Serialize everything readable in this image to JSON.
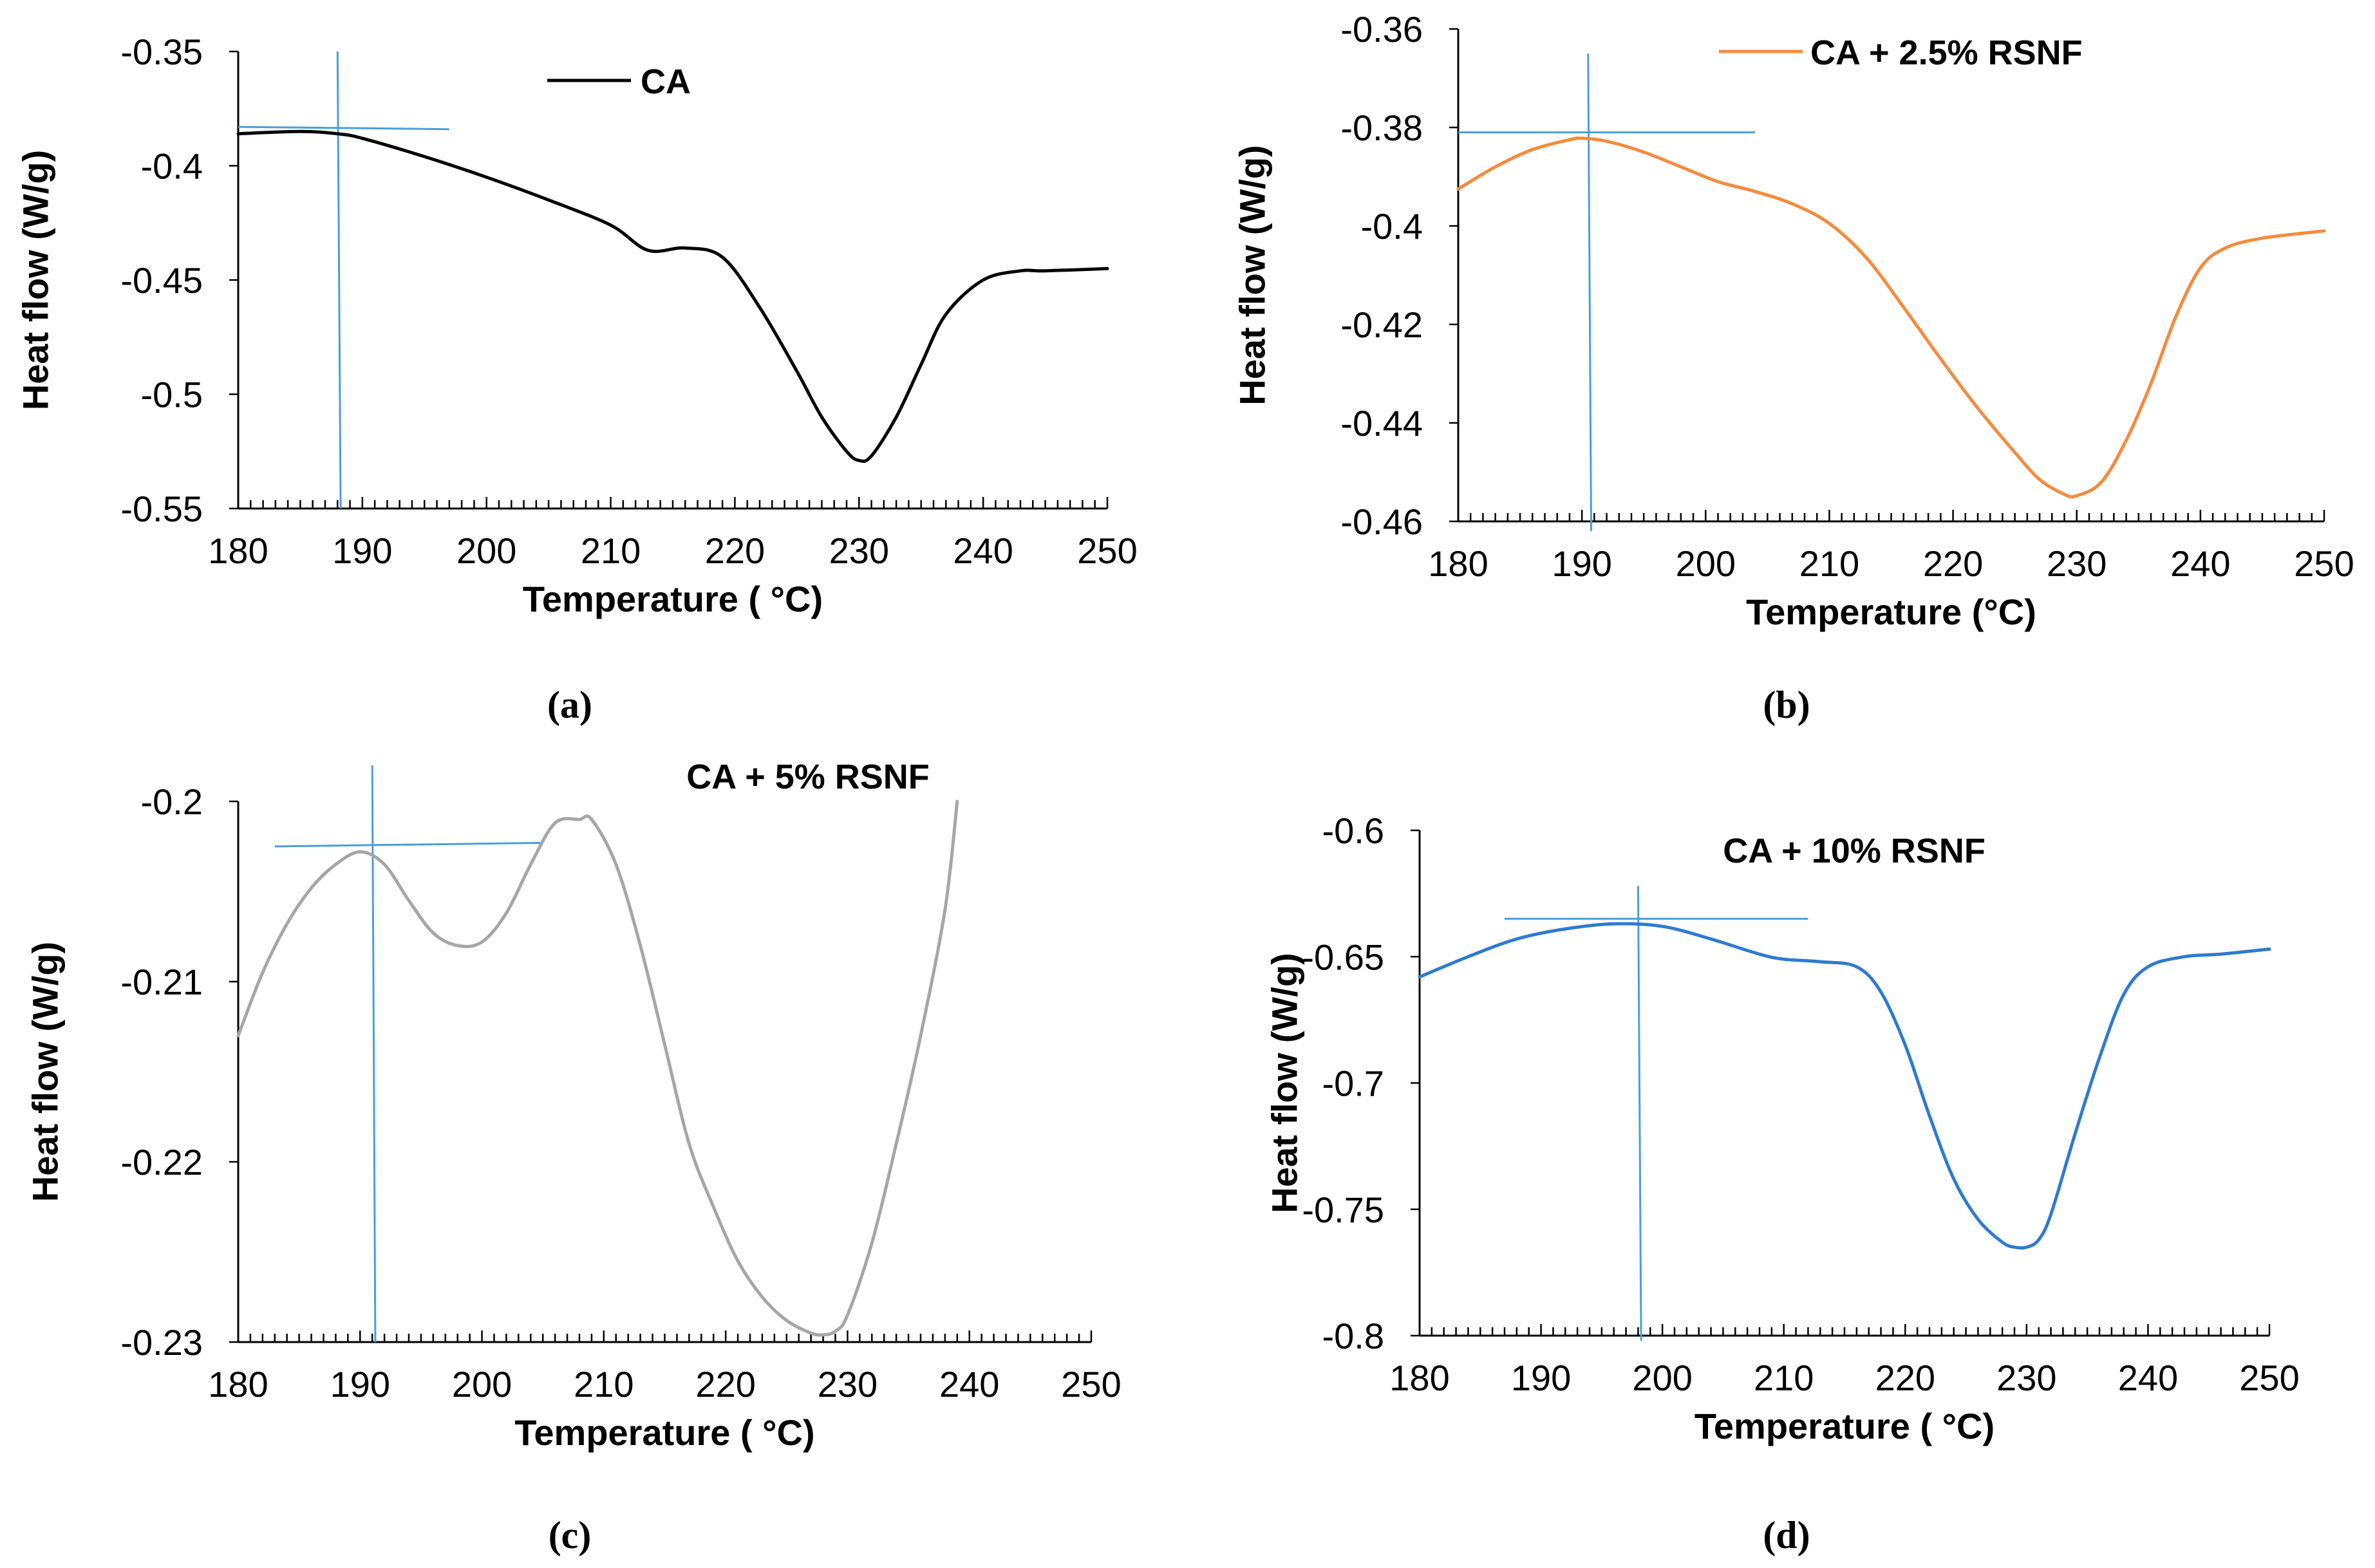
{
  "chart_data": [
    {
      "type": "line",
      "panel_label": "(a)",
      "series_name": "CA",
      "color": "#000000",
      "xlabel": "Temperature ( °C)",
      "ylabel": "Heat flow (W/g)",
      "xlim": [
        180,
        250
      ],
      "ylim": [
        -0.55,
        -0.35
      ],
      "x_ticks": [
        180,
        190,
        200,
        210,
        220,
        230,
        240,
        250
      ],
      "x_tick_labels": [
        "180",
        "190",
        "200",
        "210",
        "220",
        "230",
        "240",
        "250"
      ],
      "y_ticks": [
        -0.35,
        -0.4,
        -0.45,
        -0.5,
        -0.55
      ],
      "y_tick_labels": [
        "-0.35",
        "-0.4",
        "-0.45",
        "-0.5",
        "-0.55"
      ],
      "x": [
        180,
        185,
        188,
        190,
        195,
        200,
        205,
        210,
        213,
        216,
        219,
        222,
        225,
        227,
        229,
        230,
        231,
        233,
        235,
        237,
        240,
        243,
        245,
        250
      ],
      "y": [
        -0.386,
        -0.385,
        -0.386,
        -0.388,
        -0.396,
        -0.405,
        -0.415,
        -0.426,
        -0.437,
        -0.436,
        -0.44,
        -0.462,
        -0.49,
        -0.51,
        -0.525,
        -0.529,
        -0.527,
        -0.51,
        -0.487,
        -0.465,
        -0.45,
        -0.446,
        -0.446,
        -0.445
      ],
      "vertical_line": {
        "x": 188,
        "y": [
          -0.35,
          -0.55
        ]
      },
      "horizontal_line": {
        "x": [
          180,
          197
        ],
        "y": [
          -0.383,
          -0.384
        ]
      }
    },
    {
      "type": "line",
      "panel_label": "(b)",
      "series_name": "CA + 2.5% RSNF",
      "color": "#F58A3C",
      "xlabel": "Temperature (°C)",
      "ylabel": "Heat flow (W/g)",
      "xlim": [
        180,
        250
      ],
      "ylim": [
        -0.46,
        -0.36
      ],
      "x_ticks": [
        180,
        190,
        200,
        210,
        220,
        230,
        240,
        250
      ],
      "x_tick_labels": [
        "180",
        "190",
        "200",
        "210",
        "220",
        "230",
        "240",
        "250"
      ],
      "y_ticks": [
        -0.36,
        -0.38,
        -0.4,
        -0.42,
        -0.44,
        -0.46
      ],
      "y_tick_labels": [
        "-0.36",
        "-0.38",
        "-0.4",
        "-0.42",
        "-0.44",
        "-0.46"
      ],
      "x": [
        180,
        183,
        186,
        189,
        190,
        192,
        195,
        198,
        201,
        204,
        207,
        210,
        213,
        216,
        219,
        222,
        225,
        227,
        229,
        230,
        232,
        234,
        236,
        238,
        240,
        242,
        245,
        250
      ],
      "y": [
        -0.3925,
        -0.388,
        -0.3845,
        -0.3825,
        -0.3822,
        -0.3828,
        -0.385,
        -0.388,
        -0.391,
        -0.393,
        -0.3955,
        -0.3995,
        -0.4065,
        -0.4165,
        -0.427,
        -0.437,
        -0.446,
        -0.4515,
        -0.4545,
        -0.4548,
        -0.452,
        -0.4435,
        -0.432,
        -0.4185,
        -0.4085,
        -0.4045,
        -0.4025,
        -0.401
      ],
      "vertical_line": {
        "x": 190.5,
        "y": [
          -0.365,
          -0.462
        ]
      },
      "horizontal_line": {
        "x": [
          180,
          204
        ],
        "y": [
          -0.381,
          -0.381
        ]
      }
    },
    {
      "type": "line",
      "panel_label": "(c)",
      "series_name": "CA + 5% RSNF",
      "color": "#A6A6A6",
      "xlabel": "Temperature ( °C)",
      "ylabel": "Heat flow (W/g)",
      "xlim": [
        180,
        250
      ],
      "ylim": [
        -0.23,
        -0.2
      ],
      "x_ticks": [
        180,
        190,
        200,
        210,
        220,
        230,
        240,
        250
      ],
      "x_tick_labels": [
        "180",
        "190",
        "200",
        "210",
        "220",
        "230",
        "240",
        "250"
      ],
      "y_ticks": [
        -0.2,
        -0.21,
        -0.22,
        -0.23
      ],
      "y_tick_labels": [
        "-0.2",
        "-0.21",
        "-0.22",
        "-0.23"
      ],
      "x": [
        180,
        182,
        184,
        186,
        188,
        190,
        192,
        194,
        196,
        198,
        200,
        202,
        204,
        206,
        208,
        209,
        211,
        213,
        215,
        217,
        219,
        221,
        223,
        225,
        227,
        228,
        229,
        230,
        232,
        234,
        236,
        238,
        239
      ],
      "y": [
        -0.213,
        -0.2095,
        -0.2068,
        -0.2048,
        -0.2035,
        -0.2028,
        -0.2035,
        -0.2055,
        -0.2073,
        -0.208,
        -0.2078,
        -0.2062,
        -0.2035,
        -0.2012,
        -0.201,
        -0.201,
        -0.2035,
        -0.208,
        -0.2135,
        -0.219,
        -0.2225,
        -0.2255,
        -0.2275,
        -0.2288,
        -0.2295,
        -0.2296,
        -0.2294,
        -0.2285,
        -0.2245,
        -0.219,
        -0.213,
        -0.206,
        -0.2
      ],
      "vertical_line": {
        "x": 191,
        "y": [
          -0.198,
          -0.23
        ]
      },
      "horizontal_line": {
        "x": [
          183,
          205
        ],
        "y": [
          -0.2025,
          -0.2023
        ]
      }
    },
    {
      "type": "line",
      "panel_label": "(d)",
      "series_name": "CA + 10% RSNF",
      "color": "#2E7BCF",
      "xlabel": "Temperature ( °C)",
      "ylabel": "Heat flow (W/g)",
      "xlim": [
        180,
        250
      ],
      "ylim": [
        -0.8,
        -0.6
      ],
      "x_ticks": [
        180,
        190,
        200,
        210,
        220,
        230,
        240,
        250
      ],
      "x_tick_labels": [
        "180",
        "190",
        "200",
        "210",
        "220",
        "230",
        "240",
        "250"
      ],
      "y_ticks": [
        -0.6,
        -0.65,
        -0.7,
        -0.75,
        -0.8
      ],
      "y_tick_labels": [
        "-0.6",
        "-0.65",
        "-0.7",
        "-0.75",
        "-0.8"
      ],
      "x": [
        180,
        184,
        188,
        192,
        196,
        200,
        204,
        208,
        210,
        213,
        216,
        218,
        220,
        222,
        224,
        226,
        228,
        229,
        230,
        231,
        232,
        234,
        236,
        238,
        240,
        243,
        246,
        250
      ],
      "y": [
        -0.658,
        -0.65,
        -0.643,
        -0.639,
        -0.637,
        -0.638,
        -0.643,
        -0.649,
        -0.651,
        -0.652,
        -0.654,
        -0.664,
        -0.685,
        -0.713,
        -0.738,
        -0.754,
        -0.763,
        -0.765,
        -0.765,
        -0.762,
        -0.752,
        -0.72,
        -0.69,
        -0.665,
        -0.654,
        -0.65,
        -0.649,
        -0.647
      ],
      "vertical_line": {
        "x": 198,
        "y": [
          -0.622,
          -0.802
        ]
      },
      "horizontal_line": {
        "x": [
          187,
          212
        ],
        "y": [
          -0.635,
          -0.635
        ]
      }
    }
  ]
}
